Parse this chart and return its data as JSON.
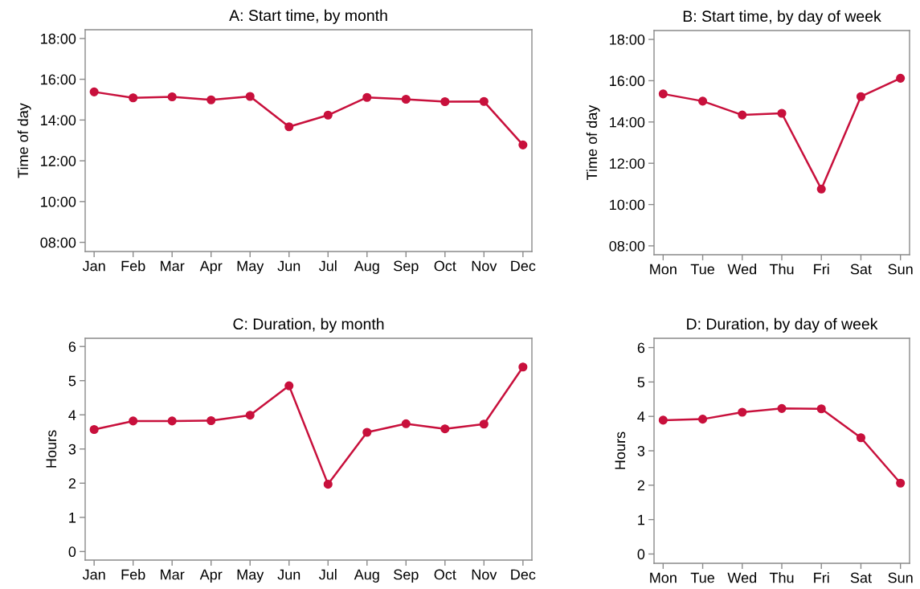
{
  "chart_data": [
    {
      "type": "line",
      "title": "A: Start time, by month",
      "ylabel": "Time of day",
      "categories": [
        "Jan",
        "Feb",
        "Mar",
        "Apr",
        "May",
        "Jun",
        "Jul",
        "Aug",
        "Sep",
        "Oct",
        "Nov",
        "Dec"
      ],
      "series": [
        {
          "color": "#c8103c",
          "values": [
            15.38,
            15.09,
            15.14,
            14.99,
            15.16,
            13.67,
            14.24,
            15.11,
            15.02,
            14.9,
            14.91,
            12.78
          ]
        }
      ],
      "ylim": [
        7.55,
        18.43
      ],
      "yticks": [
        {
          "value": 8,
          "label": "08:00"
        },
        {
          "value": 10,
          "label": "10:00"
        },
        {
          "value": 12,
          "label": "12:00"
        },
        {
          "value": 14,
          "label": "14:00"
        },
        {
          "value": 16,
          "label": "16:00"
        },
        {
          "value": 18,
          "label": "18:00"
        }
      ],
      "marker": "circle",
      "line_style": "solid"
    },
    {
      "type": "line",
      "title": "B: Start time, by day of week",
      "ylabel": "Time of day",
      "categories": [
        "Mon",
        "Tue",
        "Wed",
        "Thu",
        "Fri",
        "Sat",
        "Sun"
      ],
      "series": [
        {
          "color": "#c8103c",
          "values": [
            15.36,
            15.01,
            14.34,
            14.42,
            10.75,
            15.23,
            16.12
          ]
        }
      ],
      "ylim": [
        7.57,
        18.43
      ],
      "yticks": [
        {
          "value": 8,
          "label": "08:00"
        },
        {
          "value": 10,
          "label": "10:00"
        },
        {
          "value": 12,
          "label": "12:00"
        },
        {
          "value": 14,
          "label": "14:00"
        },
        {
          "value": 16,
          "label": "16:00"
        },
        {
          "value": 18,
          "label": "18:00"
        }
      ],
      "marker": "circle",
      "line_style": "solid"
    },
    {
      "type": "line",
      "title": "C: Duration, by month",
      "ylabel": "Hours",
      "categories": [
        "Jan",
        "Feb",
        "Mar",
        "Apr",
        "May",
        "Jun",
        "Jul",
        "Aug",
        "Sep",
        "Oct",
        "Nov",
        "Dec"
      ],
      "series": [
        {
          "color": "#c8103c",
          "values": [
            3.57,
            3.82,
            3.82,
            3.83,
            3.99,
            4.85,
            1.97,
            3.49,
            3.74,
            3.59,
            3.73,
            5.4
          ]
        }
      ],
      "ylim": [
        -0.25,
        6.24
      ],
      "yticks": [
        0,
        1,
        2,
        3,
        4,
        5,
        6
      ],
      "marker": "circle",
      "line_style": "solid"
    },
    {
      "type": "line",
      "title": "D: Duration, by day of week",
      "ylabel": "Hours",
      "categories": [
        "Mon",
        "Tue",
        "Wed",
        "Thu",
        "Fri",
        "Sat",
        "Sun"
      ],
      "series": [
        {
          "color": "#c8103c",
          "values": [
            3.89,
            3.92,
            4.12,
            4.23,
            4.22,
            3.38,
            2.06
          ]
        }
      ],
      "ylim": [
        -0.27,
        6.27
      ],
      "yticks": [
        0,
        1,
        2,
        3,
        4,
        5,
        6
      ],
      "marker": "circle",
      "line_style": "solid"
    }
  ]
}
